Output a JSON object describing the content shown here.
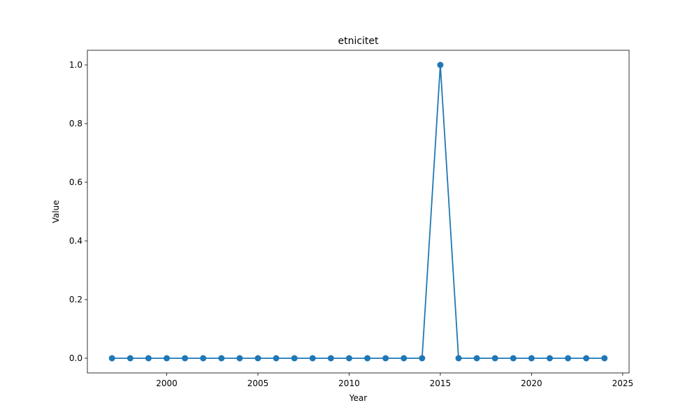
{
  "chart_data": {
    "type": "line",
    "title": "etnicitet",
    "xlabel": "Year",
    "ylabel": "Value",
    "xlim": [
      1995.65,
      2025.35
    ],
    "ylim": [
      -0.05,
      1.05
    ],
    "xticks": [
      2000,
      2005,
      2010,
      2015,
      2020,
      2025
    ],
    "yticks": [
      0.0,
      0.2,
      0.4,
      0.6,
      0.8,
      1.0
    ],
    "grid": false,
    "marker": "circle",
    "color": "#1f77b4",
    "series": [
      {
        "x": [
          1997,
          1998,
          1999,
          2000,
          2001,
          2002,
          2003,
          2004,
          2005,
          2006,
          2007,
          2008,
          2009,
          2010,
          2011,
          2012,
          2013,
          2014,
          2015,
          2016,
          2017,
          2018,
          2019,
          2020,
          2021,
          2022,
          2023,
          2024
        ],
        "values": [
          0,
          0,
          0,
          0,
          0,
          0,
          0,
          0,
          0,
          0,
          0,
          0,
          0,
          0,
          0,
          0,
          0,
          0,
          1,
          0,
          0,
          0,
          0,
          0,
          0,
          0,
          0,
          0
        ]
      }
    ]
  }
}
